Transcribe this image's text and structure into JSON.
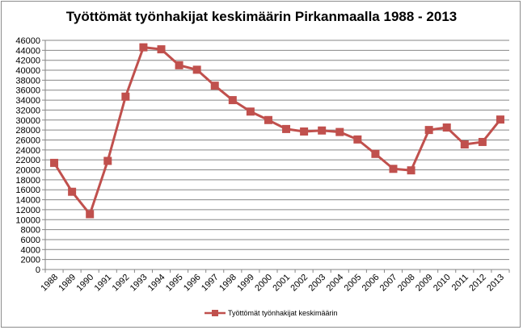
{
  "chart_data": {
    "type": "line",
    "title": "Työttömät työnhakijat keskimäärin Pirkanmaalla 1988 - 2013",
    "xlabel": "",
    "ylabel": "",
    "ylim": [
      0,
      46000
    ],
    "y_ticks": [
      "0",
      "2000",
      "4000",
      "6000",
      "8000",
      "10000",
      "12000",
      "14000",
      "16000",
      "18000",
      "20000",
      "22000",
      "24000",
      "26000",
      "28000",
      "30000",
      "32000",
      "34000",
      "36000",
      "38000",
      "40000",
      "42000",
      "44000",
      "46000"
    ],
    "categories": [
      "1988",
      "1989",
      "1990",
      "1991",
      "1992",
      "1993",
      "1994",
      "1995",
      "1996",
      "1997",
      "1998",
      "1999",
      "2000",
      "2001",
      "2002",
      "2003",
      "2004",
      "2005",
      "2006",
      "2007",
      "2008",
      "2009",
      "2010",
      "2011",
      "2012",
      "2013"
    ],
    "series": [
      {
        "name": "Työttömät työnhakijat keskimäärin",
        "color": "#c0504d",
        "values": [
          21400,
          15600,
          11100,
          21800,
          34700,
          44600,
          44200,
          41000,
          40100,
          36900,
          34000,
          31700,
          30000,
          28200,
          27700,
          27900,
          27600,
          26100,
          23200,
          20200,
          19900,
          28000,
          28500,
          25100,
          25600,
          30100
        ]
      }
    ],
    "grid": true,
    "legend_position": "bottom"
  }
}
